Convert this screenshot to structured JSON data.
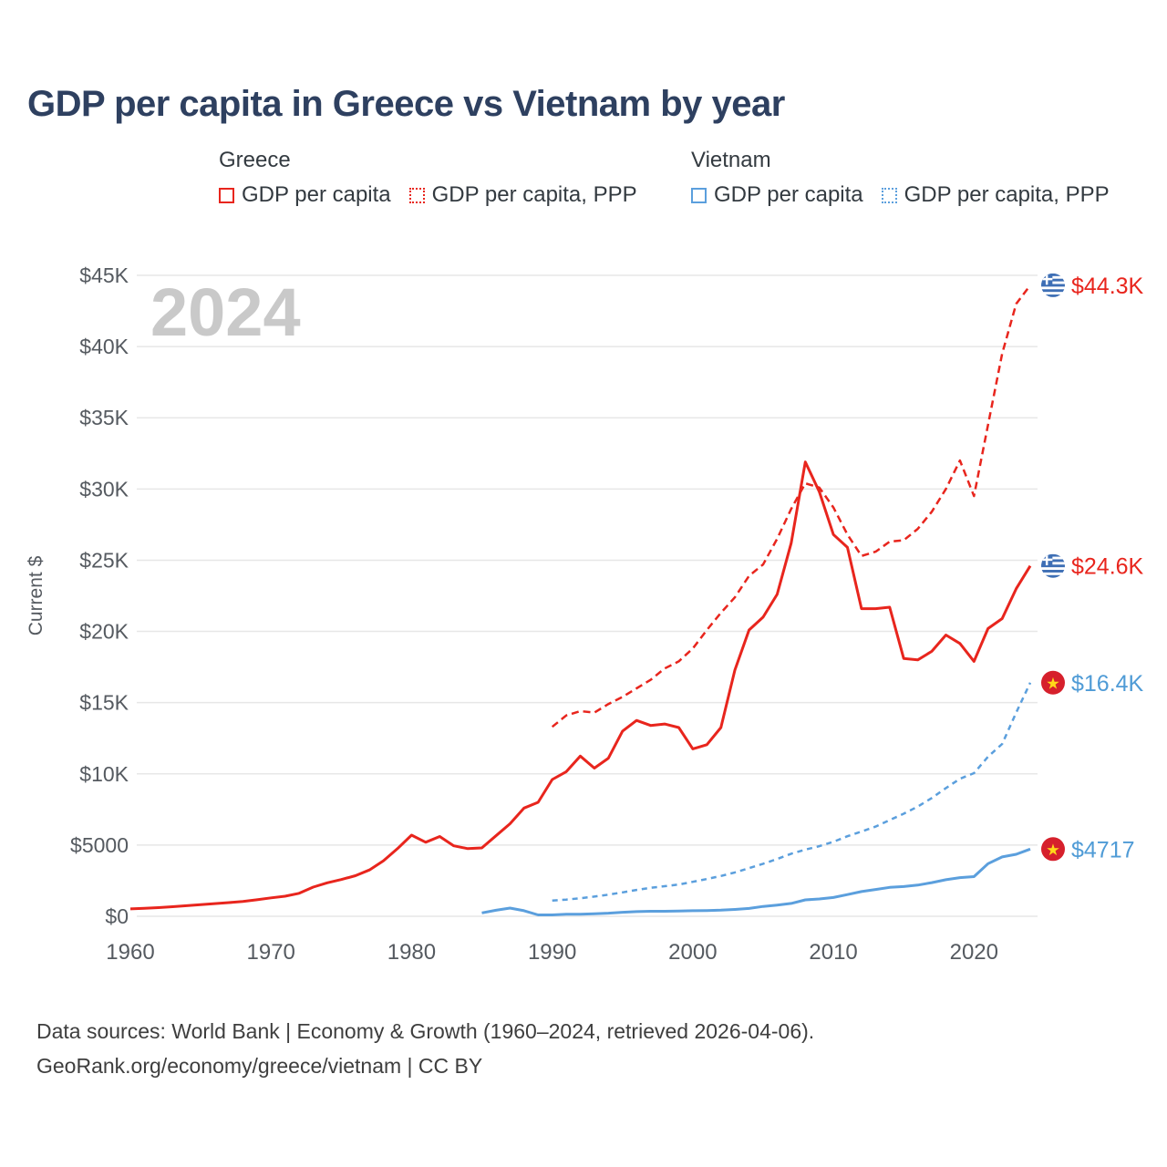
{
  "title": "GDP per capita in Greece vs Vietnam by year",
  "watermark": "2024",
  "colors": {
    "greece": "#e8251d",
    "vietnam": "#5b9fdd",
    "greece_label_text": "#e8251d",
    "vietnam_label_text": "#4f9bd6",
    "title_text": "#2e4060",
    "gridline": "#e7e7e7",
    "axis_text": "#555a60",
    "watermark_text": "#c9c9c9"
  },
  "legend": {
    "groups": [
      {
        "name": "Greece",
        "color": "#e8251d",
        "items": [
          {
            "label": "GDP per capita",
            "style": "solid"
          },
          {
            "label": "GDP per capita, PPP",
            "style": "dotted"
          }
        ]
      },
      {
        "name": "Vietnam",
        "color": "#5b9fdd",
        "items": [
          {
            "label": "GDP per capita",
            "style": "solid"
          },
          {
            "label": "GDP per capita, PPP",
            "style": "dotted"
          }
        ]
      }
    ]
  },
  "chart_data": {
    "type": "line",
    "title": "GDP per capita in Greece vs Vietnam by year",
    "xlabel": "",
    "ylabel": "Current $",
    "xlim": [
      1960,
      2024
    ],
    "ylim": [
      0,
      45000
    ],
    "grid": "horizontal",
    "legend_position": "top",
    "xticks": [
      1960,
      1970,
      1980,
      1990,
      2000,
      2010,
      2020
    ],
    "yticks": [
      {
        "v": 0,
        "label": "$0"
      },
      {
        "v": 5000,
        "label": "$5000"
      },
      {
        "v": 10000,
        "label": "$10K"
      },
      {
        "v": 15000,
        "label": "$15K"
      },
      {
        "v": 20000,
        "label": "$20K"
      },
      {
        "v": 25000,
        "label": "$25K"
      },
      {
        "v": 30000,
        "label": "$30K"
      },
      {
        "v": 35000,
        "label": "$35K"
      },
      {
        "v": 40000,
        "label": "$40K"
      },
      {
        "v": 45000,
        "label": "$45K"
      }
    ],
    "series": [
      {
        "name": "Vietnam GDP per capita, PPP",
        "color": "#5b9fdd",
        "dash": "6 5",
        "width": 2.5,
        "start_year": 1990,
        "values": [
          1100,
          1170,
          1270,
          1380,
          1520,
          1680,
          1850,
          2000,
          2110,
          2230,
          2420,
          2620,
          2830,
          3080,
          3380,
          3690,
          4020,
          4390,
          4680,
          4920,
          5230,
          5620,
          5950,
          6300,
          6750,
          7200,
          7700,
          8300,
          9000,
          9650,
          10050,
          11200,
          12100,
          14300,
          16400
        ]
      },
      {
        "name": "Vietnam GDP per capita",
        "color": "#5b9fdd",
        "dash": null,
        "width": 3,
        "start_year": 1985,
        "values": [
          240,
          420,
          575,
          390,
          95,
          95,
          140,
          140,
          180,
          220,
          280,
          325,
          350,
          350,
          365,
          390,
          405,
          430,
          480,
          550,
          690,
          785,
          905,
          1150,
          1215,
          1320,
          1525,
          1735,
          1885,
          2030,
          2085,
          2190,
          2365,
          2565,
          2715,
          2785,
          3695,
          4165,
          4350,
          4717
        ]
      },
      {
        "name": "Greece GDP per capita, PPP",
        "color": "#e8251d",
        "dash": "8 5",
        "width": 2.5,
        "start_year": 1990,
        "values": [
          13300,
          14100,
          14400,
          14300,
          14900,
          15400,
          16000,
          16600,
          17400,
          17900,
          18800,
          20100,
          21300,
          22400,
          23900,
          24700,
          26500,
          28600,
          30400,
          30100,
          28700,
          26800,
          25300,
          25600,
          26300,
          26400,
          27200,
          28400,
          30000,
          32000,
          29500,
          34500,
          39500,
          43000,
          44300
        ]
      },
      {
        "name": "Greece GDP per capita",
        "color": "#e8251d",
        "dash": null,
        "width": 3,
        "start_year": 1960,
        "values": [
          520,
          560,
          610,
          670,
          740,
          810,
          890,
          960,
          1040,
          1160,
          1290,
          1410,
          1610,
          2050,
          2350,
          2580,
          2850,
          3250,
          3900,
          4750,
          5700,
          5200,
          5600,
          4950,
          4750,
          4800,
          5650,
          6500,
          7600,
          8000,
          9600,
          10150,
          11250,
          10400,
          11100,
          13000,
          13750,
          13400,
          13500,
          13250,
          11750,
          12050,
          13250,
          17300,
          20100,
          21000,
          22600,
          26200,
          31900,
          29800,
          26800,
          25900,
          21600,
          21600,
          21700,
          18100,
          18000,
          18600,
          19750,
          19150,
          17900,
          20200,
          20900,
          23000,
          24600
        ]
      }
    ],
    "end_labels": [
      {
        "text": "$44.3K",
        "value": 44300,
        "flag": "greece",
        "color": "#e8251d"
      },
      {
        "text": "$24.6K",
        "value": 24600,
        "flag": "greece",
        "color": "#e8251d"
      },
      {
        "text": "$16.4K",
        "value": 16400,
        "flag": "vietnam",
        "color": "#4f9bd6"
      },
      {
        "text": "$4717",
        "value": 4717,
        "flag": "vietnam",
        "color": "#4f9bd6"
      }
    ]
  },
  "footer": {
    "line1": "Data sources: World Bank | Economy & Growth (1960–2024, retrieved 2026-04-06).",
    "line2": "GeoRank.org/economy/greece/vietnam | CC BY"
  }
}
